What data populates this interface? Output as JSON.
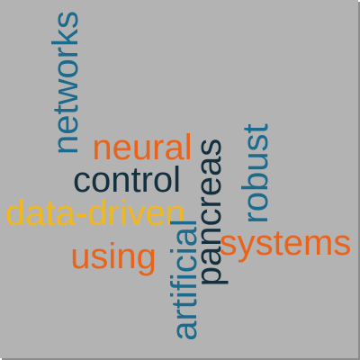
{
  "colors": {
    "background": "#b3b3b3",
    "shadow": "#8c8c8c",
    "blue": "#1c6a8c",
    "orange": "#e8641c",
    "navy": "#14303e",
    "yellow": "#f0b81c"
  },
  "words": [
    {
      "text": "networks",
      "color": "#1c6a8c"
    },
    {
      "text": "neural",
      "color": "#e8641c"
    },
    {
      "text": "control",
      "color": "#14303e"
    },
    {
      "text": "data-driven",
      "color": "#f0b81c"
    },
    {
      "text": "using",
      "color": "#e8641c"
    },
    {
      "text": "artificial",
      "color": "#1c6a8c"
    },
    {
      "text": "pancreas",
      "color": "#14303e"
    },
    {
      "text": "robust",
      "color": "#1c6a8c"
    },
    {
      "text": "systems",
      "color": "#e8641c"
    }
  ]
}
